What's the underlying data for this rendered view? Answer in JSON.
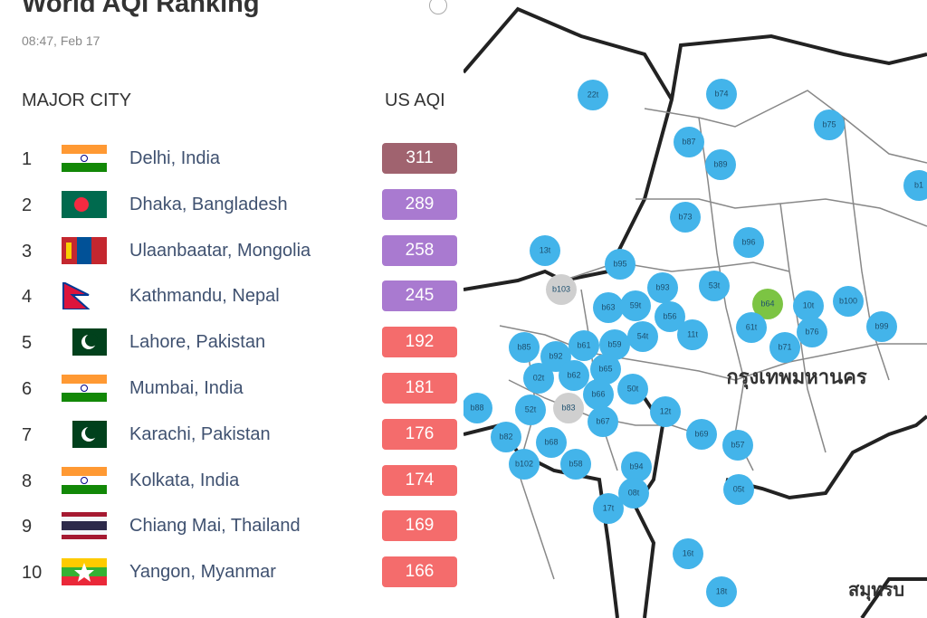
{
  "header": {
    "title": "World AQI Ranking",
    "timestamp": "08:47, Feb 17"
  },
  "table": {
    "columns": [
      "MAJOR CITY",
      "US AQI"
    ],
    "rows": [
      {
        "rank": 1,
        "city": "Delhi, India",
        "aqi": 311,
        "color": "#a0636f"
      },
      {
        "rank": 2,
        "city": "Dhaka, Bangladesh",
        "aqi": 289,
        "color": "#a97ad0"
      },
      {
        "rank": 3,
        "city": "Ulaanbaatar, Mongolia",
        "aqi": 258,
        "color": "#a97ad0"
      },
      {
        "rank": 4,
        "city": "Kathmandu, Nepal",
        "aqi": 245,
        "color": "#a97ad0"
      },
      {
        "rank": 5,
        "city": "Lahore, Pakistan",
        "aqi": 192,
        "color": "#f46c6c"
      },
      {
        "rank": 6,
        "city": "Mumbai, India",
        "aqi": 181,
        "color": "#f46c6c"
      },
      {
        "rank": 7,
        "city": "Karachi, Pakistan",
        "aqi": 176,
        "color": "#f46c6c"
      },
      {
        "rank": 8,
        "city": "Kolkata, India",
        "aqi": 174,
        "color": "#f46c6c"
      },
      {
        "rank": 9,
        "city": "Chiang Mai, Thailand",
        "aqi": 169,
        "color": "#f46c6c"
      },
      {
        "rank": 10,
        "city": "Yangon, Myanmar",
        "aqi": 166,
        "color": "#f46c6c"
      }
    ]
  },
  "map": {
    "region_label": "กรุงเทพมหานคร",
    "edge_label": "สมุทรบ",
    "stations": [
      "22t",
      "b74",
      "b75",
      "b87",
      "b89",
      "b1",
      "b73",
      "b96",
      "13t",
      "b95",
      "b103",
      "53t",
      "b93",
      "b64",
      "10t",
      "b100",
      "b63",
      "59t",
      "b56",
      "61t",
      "b76",
      "b99",
      "54t",
      "11t",
      "b71",
      "b85",
      "b92",
      "b61",
      "b59",
      "b65",
      "02t",
      "b62",
      "50t",
      "b66",
      "b88",
      "52t",
      "b83",
      "12t",
      "b67",
      "b69",
      "b82",
      "b68",
      "b57",
      "b102",
      "b58",
      "b94",
      "08t",
      "05t",
      "17t",
      "16t",
      "18t"
    ]
  }
}
